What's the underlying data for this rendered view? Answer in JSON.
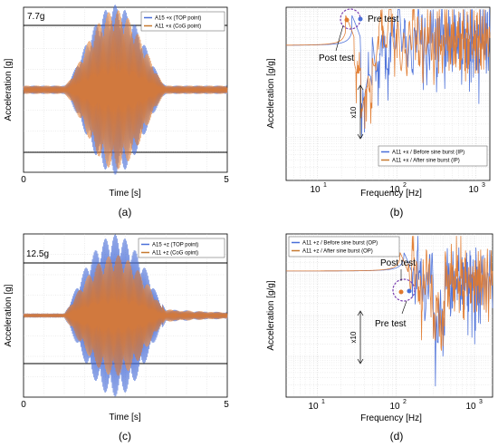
{
  "colors": {
    "series_blue": "#4a6fd8",
    "series_orange": "#e07a2e",
    "series_orange_pale": "#c77a30",
    "series_olive": "#7a6a1e",
    "frame": "#000000",
    "grid": "#c8c8c8",
    "annotation_circle": "#7a3fb0",
    "background": "#ffffff"
  },
  "chart_data": [
    {
      "id": "a",
      "type": "line",
      "panel_label": "(a)",
      "xlabel": "Time [s]",
      "ylabel": "Acceleration [g]",
      "xlim": [
        0,
        5
      ],
      "x_ticks": [
        0,
        5
      ],
      "x_tick_labels": [
        "0",
        "5"
      ],
      "y_scale": "linear",
      "ylim": [
        -10,
        10
      ],
      "amplitude_annotation": "7.7g",
      "reference_lines_g": [
        7.7,
        -7.7
      ],
      "legend": {
        "position": "top-right"
      },
      "series": [
        {
          "name": "A15 +x (TOP point)",
          "color": "blue",
          "peak_g": 9.8,
          "burst_center_s": 2.25,
          "burst_half_width_s": 1.25
        },
        {
          "name": "A11 +x (CoG point)",
          "color": "orange",
          "peak_g": 9.2,
          "burst_center_s": 2.25,
          "burst_half_width_s": 1.25
        }
      ]
    },
    {
      "id": "b",
      "type": "line",
      "panel_label": "(b)",
      "xlabel": "Frequency [Hz]",
      "ylabel": "Acceleration [g/g]",
      "x_scale": "log",
      "xlim": [
        4,
        1500
      ],
      "x_ticks": [
        10,
        100,
        1000
      ],
      "x_tick_labels": [
        "10",
        "10",
        "10"
      ],
      "x_tick_exponents": [
        "1",
        "2",
        "3"
      ],
      "y_scale": "log",
      "ylim_decades": [
        -3,
        1
      ],
      "legend": {
        "position": "bottom-right"
      },
      "annotations": [
        "Pre test",
        "Post test",
        "x10"
      ],
      "series": [
        {
          "name": "A11 +x / Before sine burst (IP)",
          "color": "blue",
          "peak_hz": 30
        },
        {
          "name": "A11 +x / After sine burst (IP)",
          "color": "orange",
          "peak_hz": 25
        }
      ]
    },
    {
      "id": "c",
      "type": "line",
      "panel_label": "(c)",
      "xlabel": "Time [s]",
      "ylabel": "Acceleration [g]",
      "xlim": [
        0,
        5
      ],
      "x_ticks": [
        0,
        5
      ],
      "x_tick_labels": [
        "0",
        "5"
      ],
      "y_scale": "linear",
      "ylim": [
        -16,
        16
      ],
      "amplitude_annotation": "12.5g",
      "reference_lines_g": [
        12.5,
        -12.5
      ],
      "legend": {
        "position": "top-right"
      },
      "series": [
        {
          "name": "A15 +z (TOP point)",
          "color": "blue",
          "peak_g": 15.5,
          "burst_center_s": 2.25,
          "burst_half_width_s": 1.25
        },
        {
          "name": "A11 +z (CoG opint)",
          "color": "orange",
          "peak_g": 11.5,
          "burst_center_s": 2.25,
          "burst_half_width_s": 1.25
        }
      ]
    },
    {
      "id": "d",
      "type": "line",
      "panel_label": "(d)",
      "xlabel": "Frequency [Hz]",
      "ylabel": "Acceleration [g/g]",
      "x_scale": "log",
      "xlim": [
        4,
        1700
      ],
      "x_ticks": [
        10,
        100,
        1000
      ],
      "x_tick_labels": [
        "10",
        "10",
        "10"
      ],
      "x_tick_exponents": [
        "1",
        "2",
        "3"
      ],
      "y_scale": "log",
      "ylim_decades": [
        -3,
        1
      ],
      "legend": {
        "position": "top-left"
      },
      "annotations": [
        "Post test",
        "Pre test",
        "x10"
      ],
      "series": [
        {
          "name": "A11 +z / Before sine burst (OP)",
          "color": "blue",
          "peak_hz": 140
        },
        {
          "name": "A11 +z / After sine burst (OP)",
          "color": "orange",
          "peak_hz": 125
        }
      ]
    }
  ]
}
